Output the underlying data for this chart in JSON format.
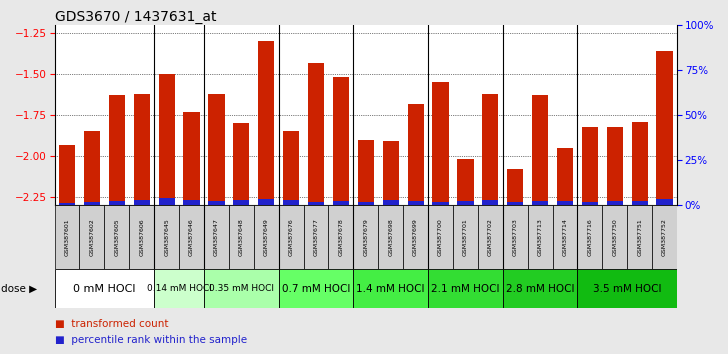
{
  "title": "GDS3670 / 1437631_at",
  "samples": [
    "GSM387601",
    "GSM387602",
    "GSM387605",
    "GSM387606",
    "GSM387645",
    "GSM387646",
    "GSM387647",
    "GSM387648",
    "GSM387649",
    "GSM387676",
    "GSM387677",
    "GSM387678",
    "GSM387679",
    "GSM387698",
    "GSM387699",
    "GSM387700",
    "GSM387701",
    "GSM387702",
    "GSM387703",
    "GSM387713",
    "GSM387714",
    "GSM387716",
    "GSM387750",
    "GSM387751",
    "GSM387752"
  ],
  "transformed_counts": [
    -1.93,
    -1.85,
    -1.63,
    -1.62,
    -1.5,
    -1.73,
    -1.62,
    -1.8,
    -1.3,
    -1.85,
    -1.43,
    -1.52,
    -1.9,
    -1.91,
    -1.68,
    -1.55,
    -2.02,
    -1.62,
    -2.08,
    -1.63,
    -1.95,
    -1.82,
    -1.82,
    -1.79,
    -1.36
  ],
  "percentile_ranks": [
    2,
    3,
    4,
    5,
    7,
    5,
    4,
    5,
    6,
    5,
    3,
    4,
    3,
    5,
    4,
    3,
    4,
    5,
    3,
    4,
    4,
    3,
    4,
    4,
    6
  ],
  "dose_groups": [
    {
      "label": "0 mM HOCl",
      "start": 0,
      "end": 4,
      "color": "#ffffff",
      "fontsize": 8
    },
    {
      "label": "0.14 mM HOCl",
      "start": 4,
      "end": 6,
      "color": "#ccffcc",
      "fontsize": 6.5
    },
    {
      "label": "0.35 mM HOCl",
      "start": 6,
      "end": 9,
      "color": "#aaffaa",
      "fontsize": 6.5
    },
    {
      "label": "0.7 mM HOCl",
      "start": 9,
      "end": 12,
      "color": "#66ff66",
      "fontsize": 7.5
    },
    {
      "label": "1.4 mM HOCl",
      "start": 12,
      "end": 15,
      "color": "#44ee44",
      "fontsize": 7.5
    },
    {
      "label": "2.1 mM HOCl",
      "start": 15,
      "end": 18,
      "color": "#33dd33",
      "fontsize": 7.5
    },
    {
      "label": "2.8 mM HOCl",
      "start": 18,
      "end": 21,
      "color": "#22cc22",
      "fontsize": 7.5
    },
    {
      "label": "3.5 mM HOCl",
      "start": 21,
      "end": 25,
      "color": "#11bb11",
      "fontsize": 7.5
    }
  ],
  "bar_color_red": "#cc2200",
  "bar_color_blue": "#2222cc",
  "ylim_left": [
    -2.3,
    -1.2
  ],
  "ylim_right": [
    0,
    100
  ],
  "yticks_left": [
    -2.25,
    -2.0,
    -1.75,
    -1.5,
    -1.25
  ],
  "yticks_right": [
    0,
    25,
    50,
    75,
    100
  ],
  "ytick_labels_right": [
    "0%",
    "25%",
    "50%",
    "75%",
    "100%"
  ],
  "bg_color": "#e8e8e8",
  "plot_bg_color": "#ffffff",
  "title_fontsize": 10,
  "blue_bar_scale": 0.006
}
